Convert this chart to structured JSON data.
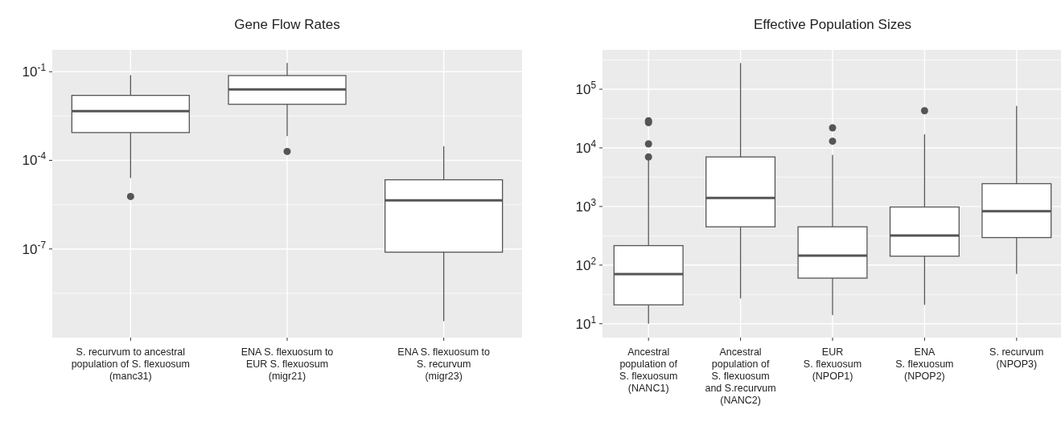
{
  "chart_data": [
    {
      "type": "box",
      "title": "Gene Flow Rates",
      "log": true,
      "grid": true,
      "categories": [
        "S. recurvum to ancestral\npopulation of S. flexuosum\n(manc31)",
        "ENA S. flexuosum to\nEUR S. flexuosum\n(migr21)",
        "ENA S. flexuosum to\nS. recurvum\n(migr23)"
      ],
      "ylim": [
        1e-10,
        0.55
      ],
      "yticks": [
        {
          "value": 1e-07,
          "label": "10$^{-7}$"
        },
        {
          "value": 0.0001,
          "label": "10$^{-4}$"
        },
        {
          "value": 0.1,
          "label": "10$^{-1}$"
        }
      ],
      "boxes": [
        {
          "low": 2.5e-05,
          "q1": 0.00087,
          "median": 0.0046,
          "q3": 0.0158,
          "high": 0.076,
          "outliers": [
            6e-06
          ]
        },
        {
          "low": 0.00066,
          "q1": 0.0079,
          "median": 0.025,
          "q3": 0.074,
          "high": 0.2,
          "outliers": [
            0.0002
          ]
        },
        {
          "low": 3.6e-10,
          "q1": 7.8e-08,
          "median": 4.4e-06,
          "q3": 2.2e-05,
          "high": 0.0003
        }
      ]
    },
    {
      "type": "box",
      "title": "Effective Population Sizes",
      "log": true,
      "grid": true,
      "categories": [
        "Ancestral\npopulation of\nS. flexuosum\n(NANC1)",
        "Ancestral\npopulation of\nS. flexuosum\nand S.recurvum\n(NANC2)",
        "EUR\nS. flexuosum\n(NPOP1)",
        "ENA\nS. flexuosum\n(NPOP2)",
        "S. recurvum\n(NPOP3)"
      ],
      "ylim": [
        5.8,
        470000
      ],
      "yticks": [
        {
          "value": 10,
          "label": "10$^{1}$"
        },
        {
          "value": 100,
          "label": "10$^{2}$"
        },
        {
          "value": 1000,
          "label": "10$^{3}$"
        },
        {
          "value": 10000,
          "label": "10$^{4}$"
        },
        {
          "value": 100000,
          "label": "10$^{5}$"
        }
      ],
      "boxes": [
        {
          "low": 10,
          "q1": 21,
          "median": 70,
          "q3": 215,
          "high": 6600,
          "outliers": [
            7000,
            11700,
            27000,
            29000
          ]
        },
        {
          "low": 27,
          "q1": 450,
          "median": 1400,
          "q3": 7000,
          "high": 280000
        },
        {
          "low": 14,
          "q1": 60,
          "median": 145,
          "q3": 450,
          "high": 7600,
          "outliers": [
            13000,
            22000
          ]
        },
        {
          "low": 21,
          "q1": 142,
          "median": 320,
          "q3": 980,
          "high": 17000,
          "outliers": [
            43000
          ]
        },
        {
          "low": 71,
          "q1": 295,
          "median": 830,
          "q3": 2450,
          "high": 52000
        }
      ]
    }
  ]
}
